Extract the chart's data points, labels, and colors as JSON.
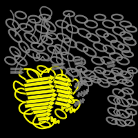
{
  "background_color": "#000000",
  "fig_width": 2.0,
  "fig_height": 2.0,
  "dpi": 100,
  "gray_color": "#888888",
  "yellow_color": "#ffff00",
  "gray_dark": "#555555",
  "yellow_dark": "#cccc00"
}
